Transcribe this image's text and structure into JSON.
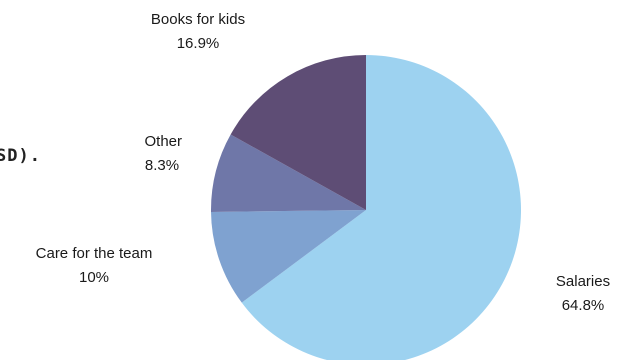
{
  "page": {
    "cut_off_text": "SD)."
  },
  "chart_data": {
    "type": "pie",
    "title": "",
    "start": "top",
    "direction": "clockwise",
    "slices": [
      {
        "label": "Salaries",
        "value": 64.8,
        "value_label": "64.8%",
        "color": "#9dd2f0"
      },
      {
        "label": "Care for the team",
        "value": 10,
        "value_label": "10%",
        "color": "#7fa2d0"
      },
      {
        "label": "Other",
        "value": 8.3,
        "value_label": "8.3%",
        "color": "#6f77a8"
      },
      {
        "label": "Books for kids",
        "value": 16.9,
        "value_label": "16.9%",
        "color": "#5e4d75"
      }
    ]
  }
}
